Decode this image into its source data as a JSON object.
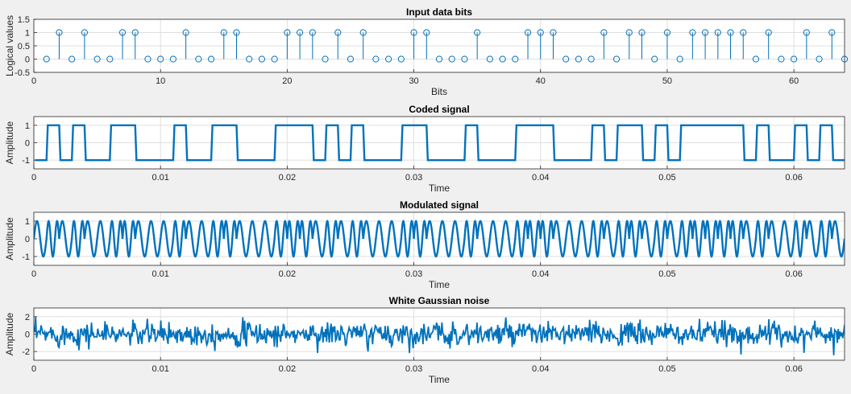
{
  "colors": {
    "line": "#0072BD",
    "grid": "#dfdfdf",
    "axis": "#262626",
    "background": "#f0f0f0",
    "plot_bg": "#ffffff"
  },
  "chart_data": [
    {
      "type": "stem",
      "title": "Input data bits",
      "xlabel": "Bits",
      "ylabel": "Logical values",
      "xlim": [
        0,
        64
      ],
      "ylim": [
        -0.5,
        1.5
      ],
      "xticks": [
        0,
        10,
        20,
        30,
        40,
        50,
        60
      ],
      "xtick_labels": [
        "0",
        "10",
        "20",
        "30",
        "40",
        "50",
        "60"
      ],
      "yticks": [
        -0.5,
        0,
        0.5,
        1,
        1.5
      ],
      "ytick_labels": [
        "-0.5",
        "0",
        "0.5",
        "1",
        "1.5"
      ],
      "grid": true,
      "x": [
        1,
        2,
        3,
        4,
        5,
        6,
        7,
        8,
        9,
        10,
        11,
        12,
        13,
        14,
        15,
        16,
        17,
        18,
        19,
        20,
        21,
        22,
        23,
        24,
        25,
        26,
        27,
        28,
        29,
        30,
        31,
        32,
        33,
        34,
        35,
        36,
        37,
        38,
        39,
        40,
        41,
        42,
        43,
        44,
        45,
        46,
        47,
        48,
        49,
        50,
        51,
        52,
        53,
        54,
        55,
        56,
        57,
        58,
        59,
        60,
        61,
        62,
        63,
        64
      ],
      "values": [
        0,
        1,
        0,
        1,
        0,
        0,
        1,
        1,
        0,
        0,
        0,
        1,
        0,
        0,
        1,
        1,
        0,
        0,
        0,
        1,
        1,
        1,
        0,
        1,
        0,
        1,
        0,
        0,
        0,
        1,
        1,
        0,
        0,
        0,
        1,
        0,
        0,
        0,
        1,
        1,
        1,
        0,
        0,
        0,
        1,
        0,
        1,
        1,
        0,
        1,
        0,
        1,
        1,
        1,
        1,
        1,
        0,
        1,
        0,
        0,
        1,
        0,
        1,
        0
      ]
    },
    {
      "type": "line",
      "title": "Coded signal",
      "xlabel": "Time",
      "ylabel": "Amplitude",
      "xlim": [
        0,
        0.064
      ],
      "ylim": [
        -1.5,
        1.5
      ],
      "xticks": [
        0,
        0.01,
        0.02,
        0.03,
        0.04,
        0.05,
        0.06
      ],
      "xtick_labels": [
        "0",
        "0.01",
        "0.02",
        "0.03",
        "0.04",
        "0.05",
        "0.06"
      ],
      "yticks": [
        -1,
        0,
        1
      ],
      "ytick_labels": [
        "-1",
        "0",
        "1"
      ],
      "grid": true,
      "bit_duration": 0.001,
      "description_levels": {
        "bit_1": 1,
        "bit_0": -1
      }
    },
    {
      "type": "line",
      "title": "Modulated signal",
      "xlabel": "Time",
      "ylabel": "Amplitude",
      "xlim": [
        0,
        0.064
      ],
      "ylim": [
        -1.5,
        1.5
      ],
      "xticks": [
        0,
        0.01,
        0.02,
        0.03,
        0.04,
        0.05,
        0.06
      ],
      "xtick_labels": [
        "0",
        "0.01",
        "0.02",
        "0.03",
        "0.04",
        "0.05",
        "0.06"
      ],
      "yticks": [
        -1,
        0,
        1
      ],
      "ytick_labels": [
        "-1",
        "0",
        "1"
      ],
      "grid": true,
      "freq_bit_1_hz": 1500,
      "freq_bit_0_hz": 1000
    },
    {
      "type": "line",
      "title": "White Gaussian noise",
      "xlabel": "Time",
      "ylabel": "Amplitude",
      "xlim": [
        0,
        0.064
      ],
      "ylim": [
        -3,
        3
      ],
      "xticks": [
        0,
        0.01,
        0.02,
        0.03,
        0.04,
        0.05,
        0.06
      ],
      "xtick_labels": [
        "0",
        "0.01",
        "0.02",
        "0.03",
        "0.04",
        "0.05",
        "0.06"
      ],
      "yticks": [
        -2,
        0,
        2
      ],
      "ytick_labels": [
        "-2",
        "0",
        "2"
      ],
      "grid": true,
      "noise_std": 0.7
    }
  ]
}
